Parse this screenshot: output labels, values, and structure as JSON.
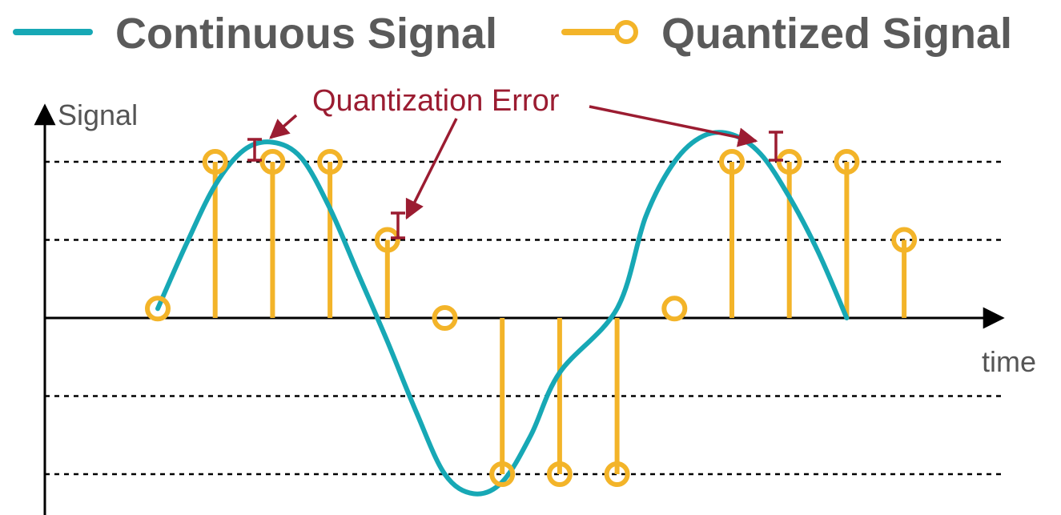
{
  "legend": {
    "continuous_label": "Continuous Signal",
    "quantized_label": "Quantized Signal"
  },
  "axes": {
    "y_label": "Signal",
    "x_label": "time"
  },
  "annotation": {
    "label": "Quantization Error"
  },
  "colors": {
    "continuous": "#17a8b5",
    "quantized": "#f3b429",
    "error": "#9b1c31",
    "axis": "#000000",
    "grid": "#000000"
  },
  "chart_data": {
    "type": "line",
    "quantization_levels": [
      -2,
      -1,
      1,
      2
    ],
    "continuous_signal": {
      "samples": [
        [
          0.0,
          0.12
        ],
        [
          0.5,
          0.95
        ],
        [
          1.0,
          1.7
        ],
        [
          1.5,
          2.15
        ],
        [
          2.0,
          2.25
        ],
        [
          2.5,
          2.05
        ],
        [
          3.0,
          1.4
        ],
        [
          3.5,
          0.55
        ],
        [
          4.0,
          -0.3
        ],
        [
          4.5,
          -1.2
        ],
        [
          5.0,
          -2.0
        ],
        [
          5.5,
          -2.25
        ],
        [
          6.0,
          -2.1
        ],
        [
          6.5,
          -1.5
        ],
        [
          7.0,
          -0.7
        ],
        [
          8.0,
          0.12
        ],
        [
          8.5,
          1.3
        ],
        [
          9.0,
          2.0
        ],
        [
          9.5,
          2.33
        ],
        [
          10.0,
          2.35
        ],
        [
          10.5,
          2.1
        ],
        [
          11.0,
          1.55
        ],
        [
          11.5,
          0.85
        ],
        [
          12.0,
          0.0
        ]
      ]
    },
    "quantized_signal": {
      "x": [
        0,
        1,
        2,
        3,
        4,
        5,
        6,
        7,
        8,
        9,
        10,
        11,
        12,
        13
      ],
      "y": [
        0,
        2,
        2,
        2,
        1,
        0,
        -2,
        -2,
        -2,
        0,
        2,
        2,
        2,
        1
      ]
    },
    "error_markers_at_x": [
      1.7,
      4.2,
      10.8
    ]
  }
}
